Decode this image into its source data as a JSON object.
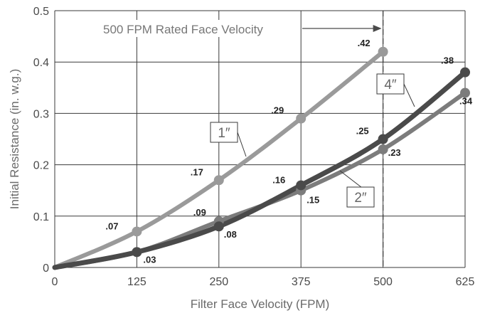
{
  "chart_data": {
    "type": "line",
    "xlabel": "Filter Face Velocity (FPM)",
    "ylabel": "Initial Resistance (in. w.g.)",
    "x_ticks": [
      "0",
      "125",
      "250",
      "375",
      "500",
      "625"
    ],
    "y_ticks": [
      "0",
      "0.1",
      "0.2",
      "0.3",
      "0.4",
      "0.5"
    ],
    "xlim": [
      0,
      625
    ],
    "ylim": [
      0,
      0.5
    ],
    "grid": true,
    "series": [
      {
        "name": "1″",
        "color": "#9a9a9a",
        "x": [
          0,
          125,
          250,
          375,
          500
        ],
        "y": [
          0,
          0.07,
          0.17,
          0.29,
          0.42
        ],
        "labels": [
          "",
          ".07",
          ".17",
          ".29",
          ".42"
        ]
      },
      {
        "name": "2″",
        "color": "#7c7c7c",
        "x": [
          0,
          125,
          250,
          375,
          500,
          625
        ],
        "y": [
          0,
          0.03,
          0.09,
          0.15,
          0.23,
          0.34
        ],
        "labels": [
          "",
          "",
          ".09",
          ".15",
          ".23",
          ".34"
        ]
      },
      {
        "name": "4″",
        "color": "#4a4a4a",
        "x": [
          0,
          125,
          250,
          375,
          500,
          625
        ],
        "y": [
          0,
          0.03,
          0.08,
          0.16,
          0.25,
          0.38
        ],
        "labels": [
          "",
          ".03",
          ".08",
          ".16",
          ".25",
          ".38"
        ]
      }
    ],
    "annotations": [
      {
        "text": "500 FPM Rated Face Velocity",
        "x": 500
      }
    ]
  }
}
